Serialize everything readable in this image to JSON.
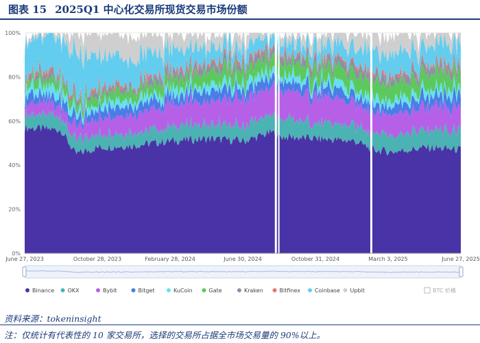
{
  "figure": {
    "label": "图表 15",
    "title": "2025Q1 中心化交易所现货交易市场份额"
  },
  "source": "资料来源：tokeninsight",
  "note": "注：仅统计有代表性的 10 家交易所，选择的交易所占据全市场交易量的 90%以上。",
  "chart_data": {
    "type": "area",
    "stacked": true,
    "x_ticks": [
      "June 27, 2023",
      "October 28, 2023",
      "February 28, 2024",
      "June 30, 2024",
      "October 31, 2024",
      "March 3, 2025",
      "June 27, 2025"
    ],
    "y_ticks": [
      "0%",
      "20%",
      "40%",
      "60%",
      "80%",
      "100%"
    ],
    "ylim": [
      0,
      100
    ],
    "grid": true,
    "legend_position": "bottom",
    "x": [
      "2023-06-27",
      "2023-08-27",
      "2023-09-20",
      "2023-10-28",
      "2023-12-30",
      "2024-02-28",
      "2024-04-30",
      "2024-06-30",
      "2024-08-15",
      "2024-08-25",
      "2024-10-31",
      "2024-12-31",
      "2025-01-31",
      "2025-03-03",
      "2025-04-30",
      "2025-06-27"
    ],
    "series": [
      {
        "name": "Binance",
        "color": "#4a33a6",
        "values": [
          57,
          56,
          45,
          48,
          49,
          51,
          52,
          51,
          55,
          53,
          52,
          51,
          47,
          46,
          48,
          47
        ]
      },
      {
        "name": "OKX",
        "color": "#4bb3b3",
        "values": [
          6,
          6,
          6,
          6,
          6,
          6,
          7,
          7,
          8,
          8,
          7,
          7,
          8,
          8,
          8,
          8
        ]
      },
      {
        "name": "Bybit",
        "color": "#b660e8",
        "values": [
          5,
          5,
          6,
          7,
          8,
          10,
          11,
          12,
          12,
          13,
          12,
          10,
          10,
          9,
          10,
          10
        ]
      },
      {
        "name": "Bitget",
        "color": "#4a7de6",
        "values": [
          4,
          4,
          4,
          4,
          4,
          4,
          4,
          4,
          5,
          4,
          4,
          4,
          4,
          4,
          5,
          5
        ]
      },
      {
        "name": "KuCoin",
        "color": "#66e0f0",
        "values": [
          4,
          4,
          3,
          3,
          3,
          3,
          3,
          3,
          3,
          3,
          3,
          3,
          3,
          3,
          3,
          3
        ]
      },
      {
        "name": "Gate",
        "color": "#5cc95c",
        "values": [
          3,
          3,
          3,
          4,
          4,
          5,
          6,
          6,
          6,
          6,
          6,
          7,
          7,
          7,
          7,
          7
        ]
      },
      {
        "name": "Kraken",
        "color": "#8c8fa6",
        "values": [
          2,
          2,
          2,
          2,
          2,
          3,
          3,
          3,
          3,
          3,
          3,
          3,
          3,
          3,
          3,
          3
        ]
      },
      {
        "name": "Bitfinex",
        "color": "#e8736a",
        "values": [
          1,
          1,
          1,
          1,
          1,
          1,
          1,
          1,
          1,
          1,
          1,
          1,
          1,
          1,
          1,
          1
        ]
      },
      {
        "name": "Coinbase",
        "color": "#63cdef",
        "values": [
          16,
          16,
          20,
          14,
          12,
          9,
          7,
          6,
          5,
          5,
          6,
          7,
          10,
          10,
          8,
          9
        ]
      },
      {
        "name": "Upbit",
        "color": "#cfcfcf",
        "values": [
          2,
          3,
          10,
          11,
          11,
          8,
          6,
          7,
          2,
          4,
          6,
          7,
          7,
          9,
          7,
          7
        ]
      }
    ],
    "secondary_legend": {
      "name": "BTC 价格",
      "enabled": false
    }
  }
}
